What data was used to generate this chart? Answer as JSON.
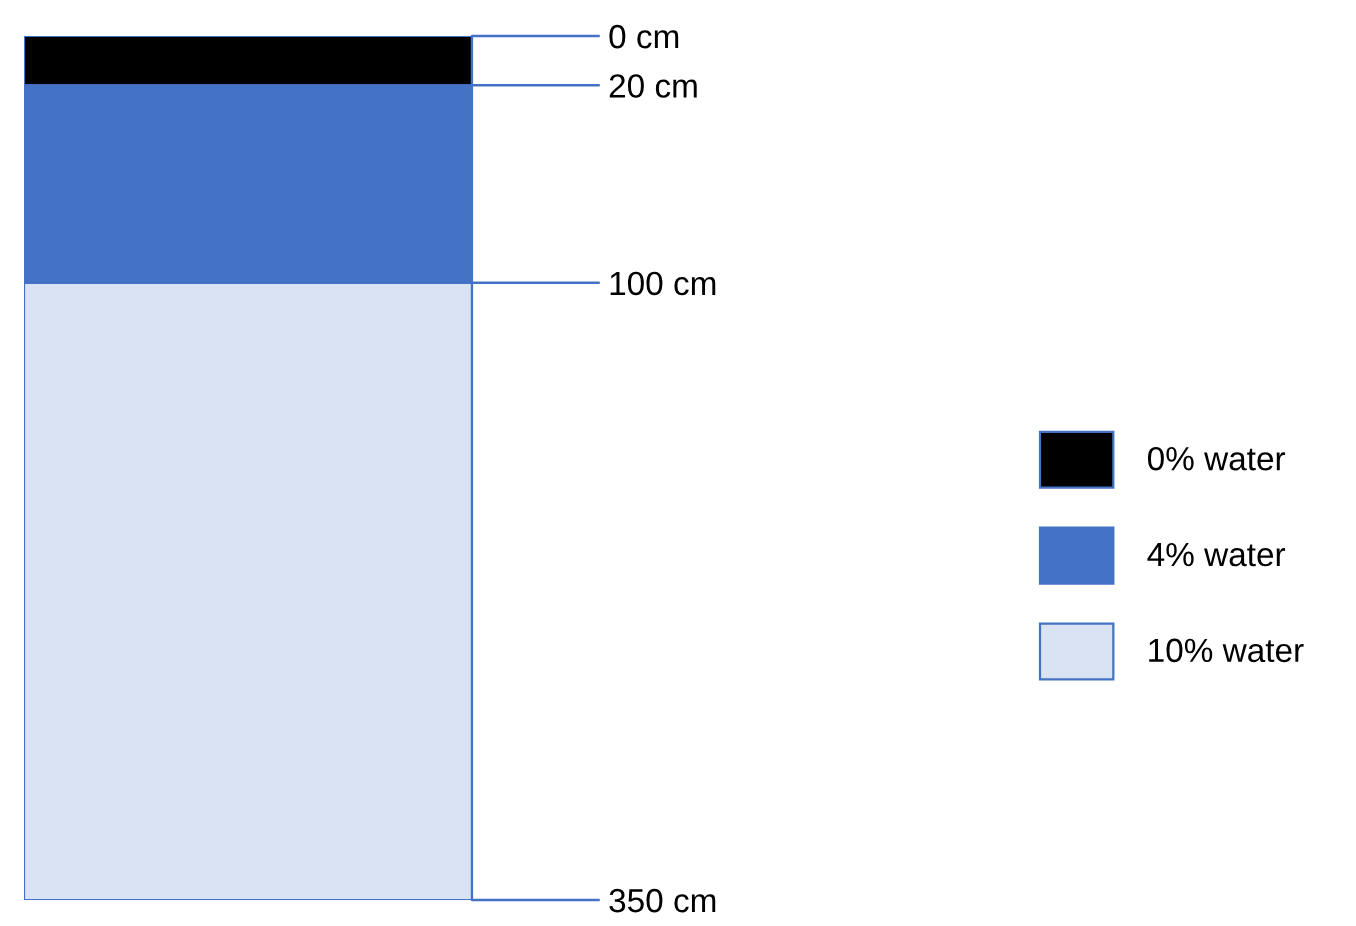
{
  "chart_data": {
    "type": "bar",
    "stacked": true,
    "categories": [
      null
    ],
    "series": [
      {
        "name": "0% water",
        "color": "#000000",
        "values": [
          20
        ]
      },
      {
        "name": "4% water",
        "color": "#4472c4",
        "values": [
          80
        ]
      },
      {
        "name": "10% water",
        "color": "#dae3f3",
        "values": [
          250
        ]
      }
    ],
    "ylim": [
      350,
      0
    ],
    "yticks": [
      {
        "value": 0,
        "label": "0 cm"
      },
      {
        "value": 20,
        "label": "20 cm"
      },
      {
        "value": 100,
        "label": "100 cm"
      },
      {
        "value": 350,
        "label": "350 cm"
      }
    ],
    "grid": false,
    "legend": "right",
    "tick_labels": "y"
  }
}
